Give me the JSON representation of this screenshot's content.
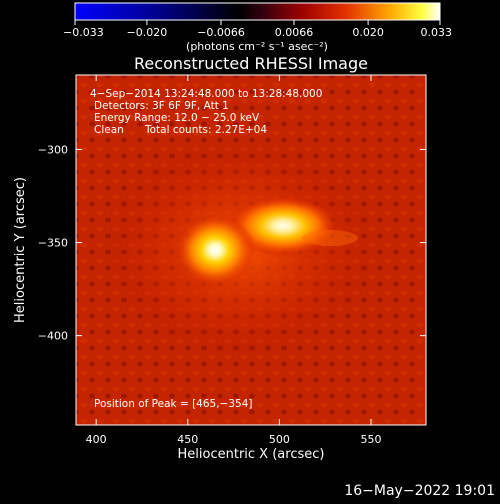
{
  "chart_data": {
    "type": "heatmap",
    "title": "Reconstructed RHESSI Image",
    "xlabel": "Heliocentric X (arcsec)",
    "ylabel": "Heliocentric Y (arcsec)",
    "xlim": [
      389,
      580
    ],
    "ylim": [
      -448,
      -260
    ],
    "x_ticks": [
      400,
      450,
      500,
      550
    ],
    "x_tick_labels": [
      "400",
      "450",
      "500",
      "550"
    ],
    "y_ticks": [
      -300,
      -350,
      -400
    ],
    "y_tick_labels": [
      "−300",
      "−350",
      "−400"
    ],
    "colorbar": {
      "colormap": "blue-black-red-yellow-white",
      "range": [
        -0.033,
        0.033
      ],
      "ticks": [
        -0.033,
        -0.02,
        -0.0066,
        0.0066,
        0.02,
        0.033
      ],
      "tick_labels": [
        "−0.033",
        "−0.020",
        "−0.0066",
        "0.0066",
        "0.020",
        "0.033"
      ],
      "unit_label": "(photons cm⁻² s⁻¹ asec⁻²)"
    },
    "sources": [
      {
        "x": 465,
        "y": -354,
        "peak": 0.033
      },
      {
        "x": 502,
        "y": -341,
        "peak": 0.029
      }
    ],
    "annotations": {
      "time_range": "4−Sep−2014 13:24:48.000 to 13:28:48.000",
      "detectors": "Detectors: 3F 6F 9F, Att 1",
      "energy": "Energy Range: 12.0 − 25.0 keV",
      "method": "Clean",
      "counts": "Total counts: 2.27E+04",
      "peak_position": "Position of Peak = [465,−354]"
    }
  },
  "footer": {
    "timestamp": "16−May−2022 19:01"
  }
}
